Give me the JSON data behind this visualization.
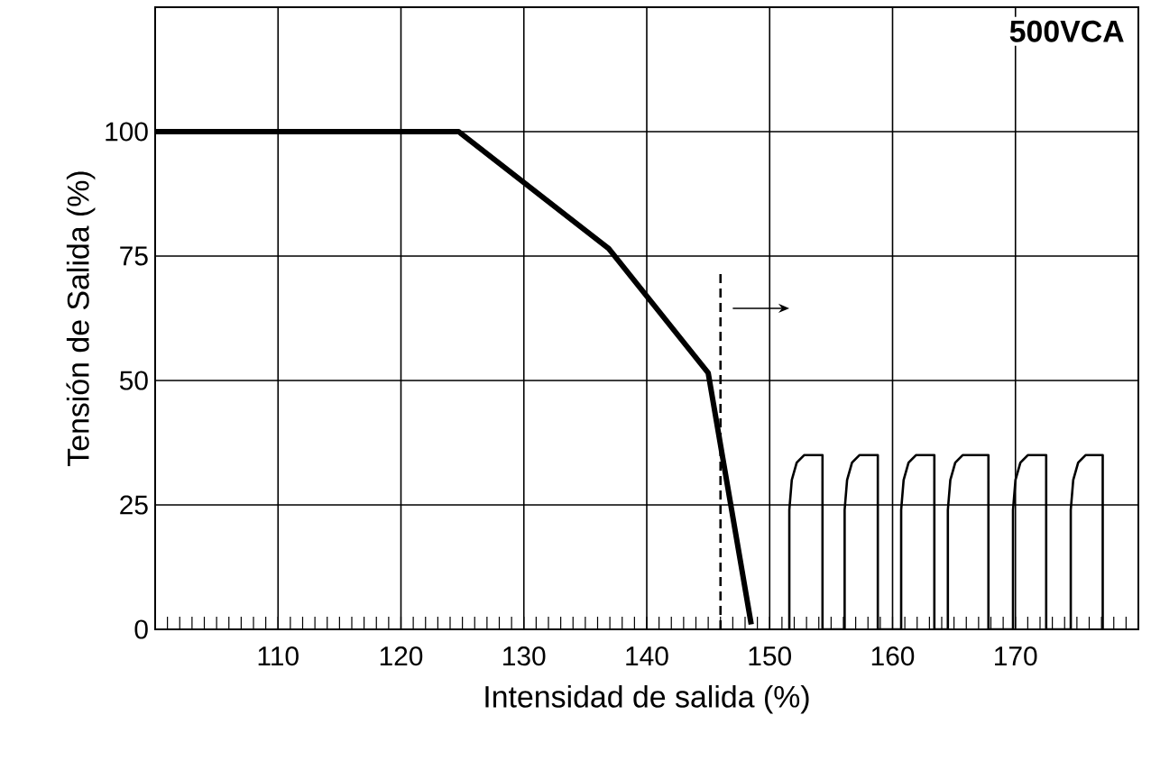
{
  "chart_data": {
    "type": "line",
    "xlabel": "Intensidad de salida (%)",
    "ylabel": "Tensión de Salida (%)",
    "annotations": [
      "500VCA"
    ],
    "xlim": [
      100,
      180
    ],
    "ylim": [
      0,
      125
    ],
    "xticks": [
      110,
      120,
      130,
      140,
      150,
      160,
      170
    ],
    "yticks": [
      0,
      25,
      50,
      75,
      100
    ],
    "grid": true,
    "marker": "none",
    "series": [
      {
        "color": "#000000",
        "x": [
          100,
          124.7,
          136.9,
          145,
          148.5
        ],
        "values": [
          100,
          100,
          76.5,
          51.5,
          1
        ]
      },
      {
        "color": "#000000",
        "line_style": "dashed",
        "x": [
          146,
          146
        ],
        "values": [
          0,
          72
        ]
      },
      {
        "color": "#000000",
        "x": [
          151.6,
          151.6,
          151.8,
          152.2,
          152.8,
          154.3,
          154.3,
          156.1,
          156.1,
          156.3,
          156.7,
          157.3,
          158.8,
          158.8,
          160.7,
          160.7,
          160.9,
          161.3,
          161.9,
          163.4,
          163.4,
          164.5,
          164.5,
          164.7,
          165.1,
          165.7,
          167.8,
          167.8,
          169.8,
          169.8,
          170.0,
          170.4,
          171.0,
          172.5,
          172.5,
          174.5,
          174.5,
          174.7,
          175.1,
          175.7,
          177.1,
          177.1
        ],
        "values": [
          0,
          24,
          30,
          33.5,
          35,
          35,
          0,
          0,
          24,
          30,
          33.5,
          35,
          35,
          0,
          0,
          24,
          30,
          33.5,
          35,
          35,
          0,
          0,
          24,
          30,
          33.5,
          35,
          35,
          0,
          0,
          24,
          30,
          33.5,
          35,
          35,
          0,
          0,
          24,
          30,
          33.5,
          35,
          35,
          0
        ]
      }
    ]
  }
}
